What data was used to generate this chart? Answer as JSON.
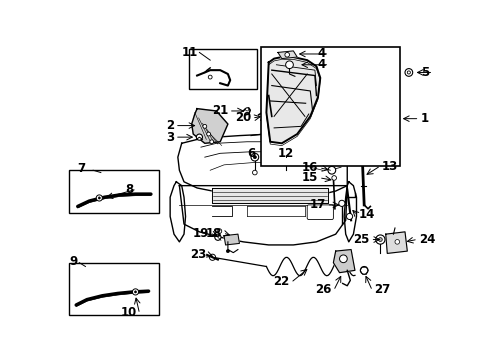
{
  "bg_color": "#ffffff",
  "fig_width": 4.89,
  "fig_height": 3.6,
  "dpi": 100,
  "font_size": 8.5,
  "bold": true
}
